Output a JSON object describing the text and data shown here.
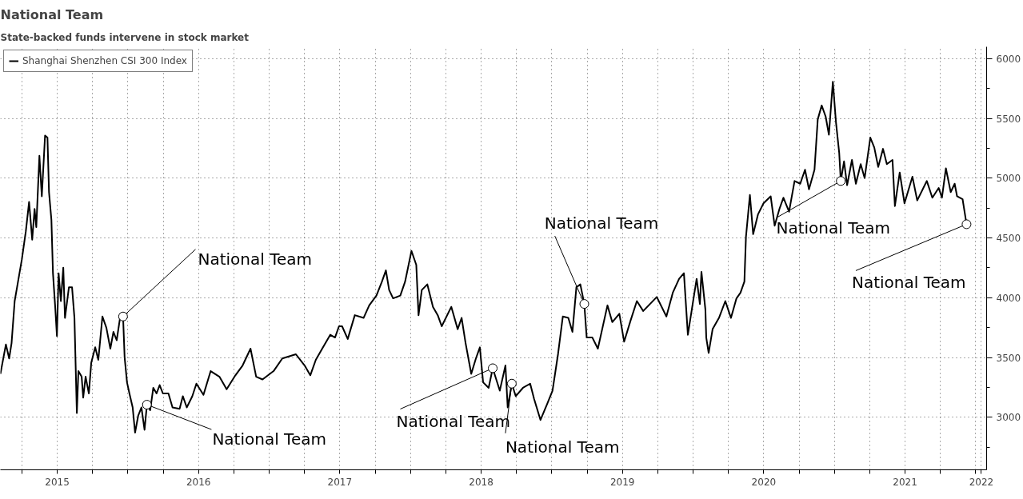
{
  "chart_data": {
    "type": "line",
    "title": "National Team",
    "subtitle": "State-backed funds intervene in stock market",
    "x": [
      2015.098,
      2015.137,
      2015.16,
      2015.177,
      2015.199,
      2015.216,
      2015.25,
      2015.278,
      2015.301,
      2015.323,
      2015.34,
      2015.352,
      2015.374,
      2015.391,
      2015.414,
      2015.431,
      2015.442,
      2015.459,
      2015.47,
      2015.487,
      2015.498,
      2015.51,
      2015.526,
      2015.543,
      2015.555,
      2015.583,
      2015.605,
      2015.622,
      2015.639,
      2015.65,
      2015.673,
      2015.684,
      2015.701,
      2015.724,
      2015.741,
      2015.769,
      2015.791,
      2015.82,
      2015.848,
      2015.876,
      2015.898,
      2015.921,
      2015.949,
      2015.966,
      2015.977,
      2015.994,
      2016.011,
      2016.034,
      2016.051,
      2016.073,
      2016.096,
      2016.118,
      2016.135,
      2016.158,
      2016.18,
      2016.203,
      2016.225,
      2016.248,
      2016.287,
      2016.316,
      2016.366,
      2016.389,
      2016.417,
      2016.456,
      2016.485,
      2016.535,
      2016.586,
      2016.648,
      2016.699,
      2016.761,
      2016.812,
      2016.868,
      2016.908,
      2016.953,
      2017.031,
      2017.093,
      2017.189,
      2017.251,
      2017.291,
      2017.33,
      2017.381,
      2017.432,
      2017.466,
      2017.494,
      2017.516,
      2017.556,
      2017.606,
      2017.668,
      2017.708,
      2017.759,
      2017.798,
      2017.826,
      2017.849,
      2017.877,
      2017.928,
      2017.962,
      2018.007,
      2018.041,
      2018.057,
      2018.08,
      2018.119,
      2018.159,
      2018.193,
      2018.221,
      2018.289,
      2018.334,
      2018.362,
      2018.39,
      2018.43,
      2018.463,
      2018.491,
      2018.514,
      2018.553,
      2018.582,
      2018.632,
      2018.672,
      2018.688,
      2018.717,
      2018.745,
      2018.796,
      2018.847,
      2018.875,
      2018.92,
      2018.965,
      2019.005,
      2019.044,
      2019.078,
      2019.117,
      2019.146,
      2019.174,
      2019.202,
      2019.23,
      2019.247,
      2019.287,
      2019.326,
      2019.394,
      2019.428,
      2019.478,
      2019.512,
      2019.557,
      2019.602,
      2019.647,
      2019.743,
      2019.811,
      2019.856,
      2019.901,
      2019.935,
      2019.963,
      2019.997,
      2020.025,
      2020.048,
      2020.059,
      2020.087,
      2020.093,
      2020.11,
      2020.138,
      2020.183,
      2020.228,
      2020.268,
      2020.307,
      2020.335,
      2020.363,
      2020.374,
      2020.402,
      2020.425,
      2020.459,
      2020.498,
      2020.549,
      2020.577,
      2020.611,
      2020.639,
      2020.679,
      2020.718,
      2020.758,
      2020.792,
      2020.82,
      2020.859,
      2020.882,
      2020.91,
      2020.938,
      2020.961,
      2020.989,
      2021.011,
      2021.034,
      2021.045,
      2021.068,
      2021.09,
      2021.124,
      2021.152,
      2021.186,
      2021.214,
      2021.254,
      2021.282,
      2021.31,
      2021.344,
      2021.371,
      2021.411,
      2021.428,
      2021.462,
      2021.496,
      2021.552,
      2021.586,
      2021.654,
      2021.693,
      2021.738,
      2021.761,
      2021.789,
      2021.823,
      2021.851,
      2021.868,
      2021.907,
      2021.935
    ],
    "series": [
      {
        "name": "Shanghai Shenzhen CSI 300 Index",
        "color": "#000000",
        "values": [
          3363,
          3609,
          3492,
          3620,
          3972,
          4088,
          4322,
          4556,
          4802,
          4486,
          4743,
          4591,
          5188,
          4849,
          5357,
          5340,
          4884,
          4650,
          4205,
          3901,
          3679,
          4205,
          3972,
          4252,
          3831,
          4088,
          4088,
          3831,
          3035,
          3386,
          3339,
          3164,
          3339,
          3199,
          3456,
          3585,
          3480,
          3843,
          3749,
          3574,
          3714,
          3644,
          3866,
          3843,
          3503,
          3292,
          3199,
          3082,
          2871,
          3012,
          3082,
          2895,
          3105,
          3059,
          3246,
          3199,
          3269,
          3199,
          3199,
          3082,
          3070,
          3176,
          3082,
          3176,
          3281,
          3187,
          3386,
          3339,
          3234,
          3351,
          3433,
          3574,
          3339,
          3316,
          3386,
          3492,
          3527,
          3433,
          3351,
          3480,
          3585,
          3690,
          3667,
          3761,
          3761,
          3655,
          3854,
          3831,
          3936,
          4018,
          4135,
          4229,
          4065,
          3995,
          4018,
          4135,
          4392,
          4275,
          3854,
          4065,
          4112,
          3924,
          3854,
          3761,
          3924,
          3737,
          3831,
          3620,
          3363,
          3492,
          3585,
          3292,
          3246,
          3410,
          3222,
          3433,
          3082,
          3281,
          3176,
          3246,
          3281,
          3152,
          2977,
          3105,
          3222,
          3527,
          3843,
          3831,
          3714,
          4088,
          4112,
          3948,
          3667,
          3667,
          3574,
          3936,
          3796,
          3866,
          3632,
          3807,
          3972,
          3889,
          4006,
          3843,
          4041,
          4158,
          4205,
          3690,
          3948,
          4158,
          3948,
          4217,
          3901,
          3667,
          3538,
          3737,
          3831,
          3972,
          3831,
          3995,
          4041,
          4135,
          4509,
          4860,
          4532,
          4697,
          4790,
          4849,
          4603,
          4743,
          4837,
          4720,
          4977,
          4954,
          5071,
          4907,
          5071,
          5492,
          5609,
          5516,
          5364,
          5808,
          5469,
          5211,
          4977,
          5141,
          4942,
          5153,
          4954,
          5118,
          5001,
          5340,
          5258,
          5094,
          5246,
          5118,
          5153,
          4767,
          5048,
          4790,
          5013,
          4814,
          4977,
          4837,
          4919,
          4837,
          5083,
          4884,
          4954,
          4849,
          4825,
          4615
        ]
      }
    ],
    "xlim": [
      2015.098,
      2022.077
    ],
    "ylim": [
      2560,
      6100
    ],
    "xticks": [
      {
        "value": 2015.25,
        "label": null
      },
      {
        "value": 2015.5,
        "label": "2015"
      },
      {
        "value": 2015.75,
        "label": null
      },
      {
        "value": 2016,
        "label": null
      },
      {
        "value": 2016.25,
        "label": null
      },
      {
        "value": 2016.5,
        "label": "2016"
      },
      {
        "value": 2016.75,
        "label": null
      },
      {
        "value": 2017,
        "label": null
      },
      {
        "value": 2017.25,
        "label": null
      },
      {
        "value": 2017.5,
        "label": "2017"
      },
      {
        "value": 2017.75,
        "label": null
      },
      {
        "value": 2018,
        "label": null
      },
      {
        "value": 2018.25,
        "label": null
      },
      {
        "value": 2018.5,
        "label": "2018"
      },
      {
        "value": 2018.75,
        "label": null
      },
      {
        "value": 2019,
        "label": null
      },
      {
        "value": 2019.25,
        "label": null
      },
      {
        "value": 2019.5,
        "label": "2019"
      },
      {
        "value": 2019.75,
        "label": null
      },
      {
        "value": 2020,
        "label": null
      },
      {
        "value": 2020.25,
        "label": null
      },
      {
        "value": 2020.5,
        "label": "2020"
      },
      {
        "value": 2020.75,
        "label": null
      },
      {
        "value": 2021,
        "label": null
      },
      {
        "value": 2021.25,
        "label": null
      },
      {
        "value": 2021.5,
        "label": "2021"
      },
      {
        "value": 2021.75,
        "label": null
      },
      {
        "value": 2022,
        "label": null
      },
      {
        "value": 2022.04,
        "label": "2022"
      }
    ],
    "yticks": [
      3000,
      3500,
      4000,
      4500,
      5000,
      5500,
      6000
    ],
    "grid": true,
    "legend": "top left",
    "annotations": [
      {
        "text": "National Team",
        "x": 2015.966,
        "y": 3843
      },
      {
        "text": "National Team",
        "x": 2016.135,
        "y": 3105
      },
      {
        "text": "National Team",
        "x": 2018.582,
        "y": 3410
      },
      {
        "text": "National Team",
        "x": 2018.717,
        "y": 3281
      },
      {
        "text": "National Team",
        "x": 2019.23,
        "y": 3948
      },
      {
        "text": "National Team",
        "x": 2021.045,
        "y": 4977
      },
      {
        "text": "National Team",
        "x": 2021.935,
        "y": 4615
      }
    ]
  }
}
